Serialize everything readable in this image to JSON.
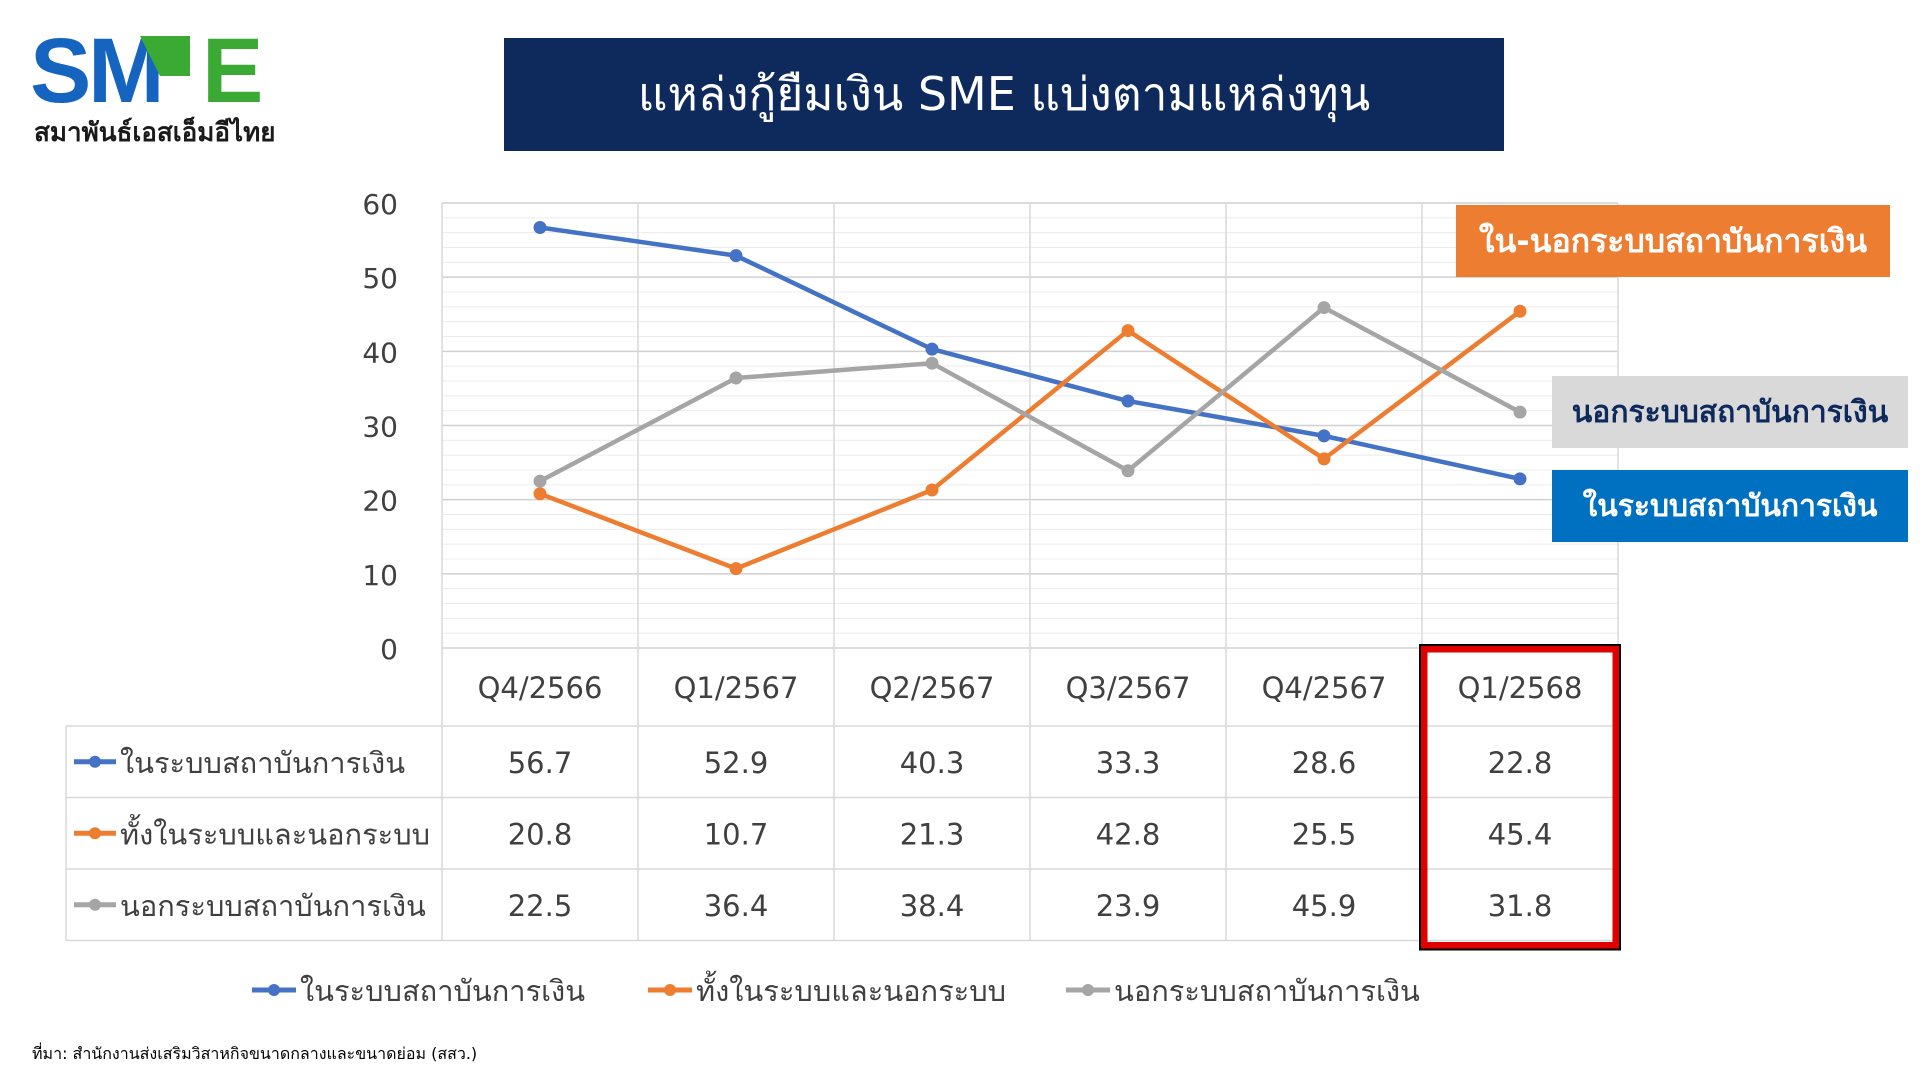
{
  "logo": {
    "text": "SME",
    "subtitle": "สมาพันธ์เอสเอ็มอีไทย"
  },
  "title": "แหล่งกู้ยืมเงิน SME แบ่งตามแหล่งทุน",
  "callouts": {
    "both": "ใน-นอกระบบสถาบันการเงิน",
    "outside": "นอกระบบสถาบันการเงิน",
    "inside": "ในระบบสถาบันการเงิน"
  },
  "colors": {
    "title_bg": "#0e2a5c",
    "logo_blue": "#1565c0",
    "logo_green": "#3aaa35",
    "highlight": "#e00000"
  },
  "highlighted_category": "Q1/2568",
  "source": "ที่มา: สำนักงานส่งเสริมวิสาหกิจขนาดกลางและขนาดย่อม (สสว.)",
  "chart_data": {
    "type": "line",
    "categories": [
      "Q4/2566",
      "Q1/2567",
      "Q2/2567",
      "Q3/2567",
      "Q4/2567",
      "Q1/2568"
    ],
    "series": [
      {
        "name": "ในระบบสถาบันการเงิน",
        "color": "#4472c4",
        "values": [
          56.7,
          52.9,
          40.3,
          33.3,
          28.6,
          22.8
        ]
      },
      {
        "name": "ทั้งในระบบและนอกระบบ",
        "color": "#ed7d31",
        "values": [
          20.8,
          10.7,
          21.3,
          42.8,
          25.5,
          45.4
        ]
      },
      {
        "name": "นอกระบบสถาบันการเงิน",
        "color": "#a5a5a5",
        "values": [
          22.5,
          36.4,
          38.4,
          23.9,
          45.9,
          31.8
        ]
      }
    ],
    "ylim": [
      0,
      60
    ],
    "yticks": [
      0,
      10,
      20,
      30,
      40,
      50,
      60
    ],
    "grid": true,
    "data_table": true,
    "legend": "bottom"
  }
}
